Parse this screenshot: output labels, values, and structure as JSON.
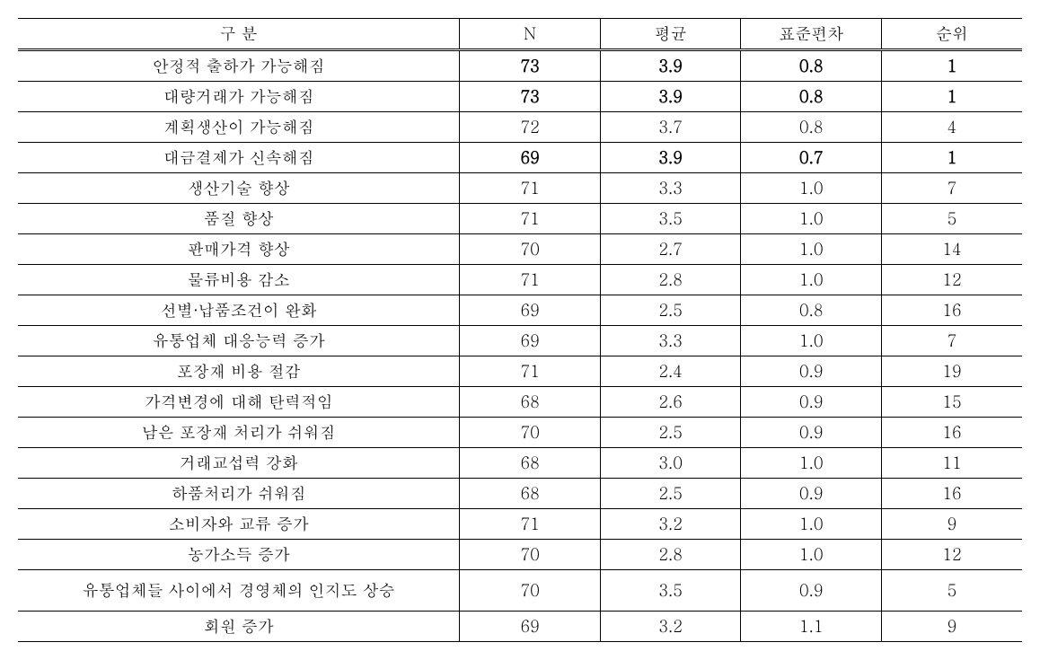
{
  "table": {
    "columns": [
      {
        "key": "category",
        "label": "구 분"
      },
      {
        "key": "n",
        "label": "N"
      },
      {
        "key": "mean",
        "label": "평균"
      },
      {
        "key": "std",
        "label": "표준편차"
      },
      {
        "key": "rank",
        "label": "순위"
      }
    ],
    "column_widths": [
      "44%",
      "14%",
      "14%",
      "14%",
      "14%"
    ],
    "rows": [
      {
        "category": "안정적 출하가 가능해짐",
        "n": "73",
        "mean": "3.9",
        "std": "0.8",
        "rank": "1",
        "bold": true
      },
      {
        "category": "대량거래가 가능해짐",
        "n": "73",
        "mean": "3.9",
        "std": "0.8",
        "rank": "1",
        "bold": true
      },
      {
        "category": "계획생산이 가능해짐",
        "n": "72",
        "mean": "3.7",
        "std": "0.8",
        "rank": "4",
        "bold": false
      },
      {
        "category": "대금결제가 신속해짐",
        "n": "69",
        "mean": "3.9",
        "std": "0.7",
        "rank": "1",
        "bold": true
      },
      {
        "category": "생산기술 향상",
        "n": "71",
        "mean": "3.3",
        "std": "1.0",
        "rank": "7",
        "bold": false
      },
      {
        "category": "품질 향상",
        "n": "71",
        "mean": "3.5",
        "std": "1.0",
        "rank": "5",
        "bold": false
      },
      {
        "category": "판매가격 향상",
        "n": "70",
        "mean": "2.7",
        "std": "1.0",
        "rank": "14",
        "bold": false
      },
      {
        "category": "물류비용 감소",
        "n": "71",
        "mean": "2.8",
        "std": "1.0",
        "rank": "12",
        "bold": false
      },
      {
        "category": "선별·납품조건이 완화",
        "n": "69",
        "mean": "2.5",
        "std": "0.8",
        "rank": "16",
        "bold": false
      },
      {
        "category": "유통업체 대응능력 증가",
        "n": "69",
        "mean": "3.3",
        "std": "1.0",
        "rank": "7",
        "bold": false
      },
      {
        "category": "포장재 비용 절감",
        "n": "71",
        "mean": "2.4",
        "std": "0.9",
        "rank": "19",
        "bold": false
      },
      {
        "category": "가격변경에 대해 탄력적임",
        "n": "68",
        "mean": "2.6",
        "std": "0.9",
        "rank": "15",
        "bold": false
      },
      {
        "category": "남은 포장재 처리가 쉬워짐",
        "n": "70",
        "mean": "2.5",
        "std": "0.9",
        "rank": "16",
        "bold": false
      },
      {
        "category": "거래교섭력 강화",
        "n": "68",
        "mean": "3.0",
        "std": "1.0",
        "rank": "11",
        "bold": false
      },
      {
        "category": "하품처리가 쉬워짐",
        "n": "68",
        "mean": "2.5",
        "std": "0.9",
        "rank": "16",
        "bold": false
      },
      {
        "category": "소비자와 교류 증가",
        "n": "71",
        "mean": "3.2",
        "std": "1.0",
        "rank": "9",
        "bold": false
      },
      {
        "category": "농가소득 증가",
        "n": "70",
        "mean": "2.8",
        "std": "1.0",
        "rank": "12",
        "bold": false
      },
      {
        "category": "유통업체들 사이에서 경영체의 인지도 상승",
        "n": "70",
        "mean": "3.5",
        "std": "0.9",
        "rank": "5",
        "bold": false,
        "tall": true
      },
      {
        "category": "회원 증가",
        "n": "69",
        "mean": "3.2",
        "std": "1.1",
        "rank": "9",
        "bold": false
      }
    ],
    "styling": {
      "font_family": "Batang, BatangChe, serif",
      "font_size": 18,
      "text_color": "#000000",
      "background_color": "#ffffff",
      "border_color": "#000000",
      "outer_border_width": 1.5,
      "inner_border_width": 1,
      "header_border_style": "double"
    }
  }
}
